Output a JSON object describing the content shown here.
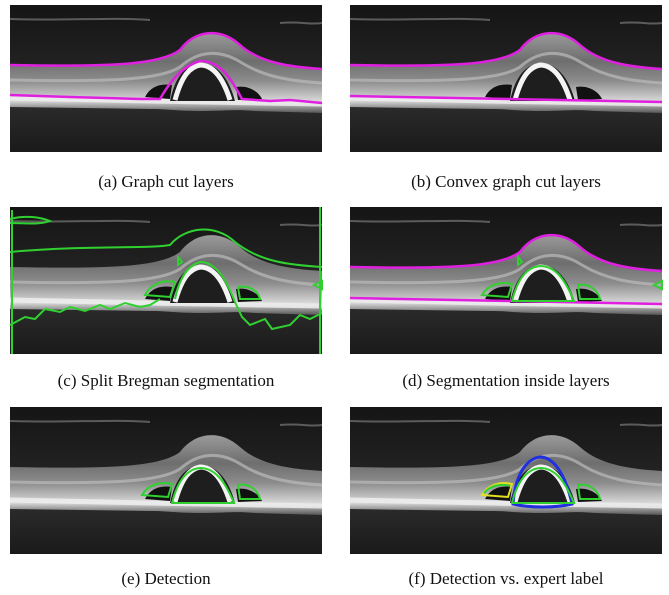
{
  "figure": {
    "panels": [
      {
        "caption": "(a) Graph cut layers"
      },
      {
        "caption": "(b) Convex graph cut layers"
      },
      {
        "caption": "(c) Split Bregman segmentation"
      },
      {
        "caption": "(d) Segmentation inside layers"
      },
      {
        "caption": "(e) Detection"
      },
      {
        "caption": "(f) Detection vs. expert label"
      }
    ]
  }
}
